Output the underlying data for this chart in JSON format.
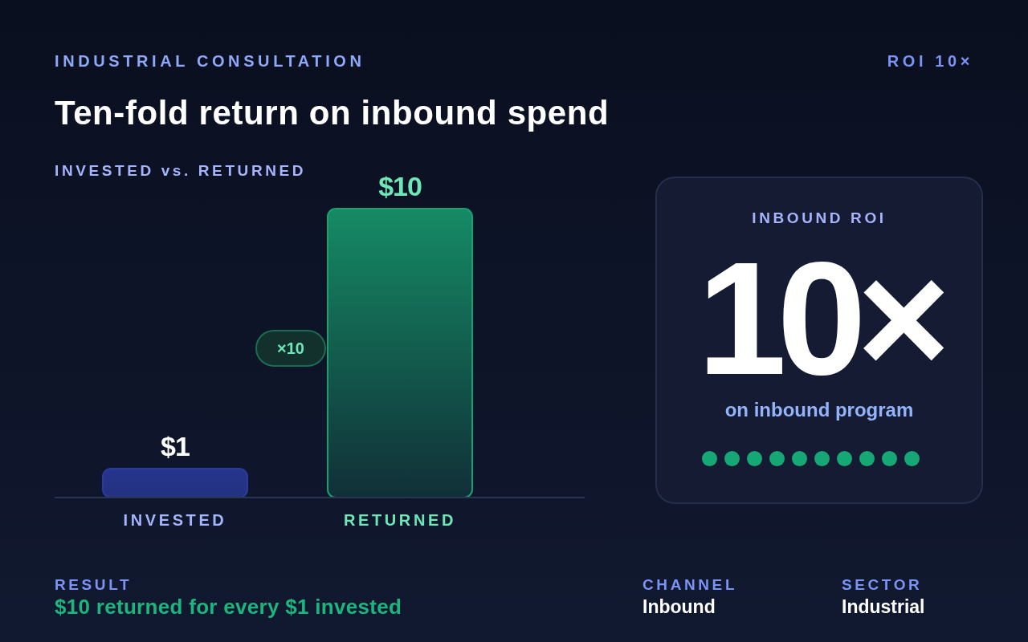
{
  "chart_data": [
    {
      "type": "bar",
      "title": "Ten-fold return on inbound spend",
      "subtitle": "INVESTED vs. RETURNED",
      "categories": [
        "INVESTED",
        "RETURNED"
      ],
      "values": [
        1,
        10
      ],
      "colors": [
        "#2a3a9e",
        "#17a070"
      ],
      "value_labels": [
        "$1",
        "$10"
      ],
      "annotations": [
        "INDUSTRIAL CONSULTATION",
        "ROI 10×",
        "×10",
        "RESULT",
        "$10 returned for every $1 invested",
        "CHANNEL",
        "Inbound",
        "SECTOR",
        "Industrial"
      ]
    },
    {
      "type": "other",
      "title": "INBOUND ROI",
      "annotations": [
        "10×",
        "on inbound program"
      ]
    }
  ]
}
